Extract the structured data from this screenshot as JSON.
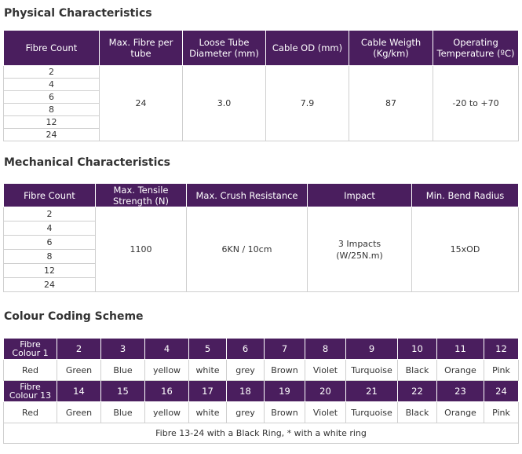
{
  "physical": {
    "title": "Physical Characteristics",
    "headers": [
      "Fibre Count",
      "Max. Fibre per tube",
      "Loose Tube Diameter (mm)",
      "Cable OD (mm)",
      "Cable Weigth (Kg/km)",
      "Operating Temperature (ºC)"
    ],
    "fibre_counts": [
      "2",
      "4",
      "6",
      "8",
      "12",
      "24"
    ],
    "values": [
      "24",
      "3.0",
      "7.9",
      "87",
      "-20 to +70"
    ]
  },
  "mechanical": {
    "title": "Mechanical Characteristics",
    "headers": [
      "Fibre Count",
      "Max. Tensile Strength (N)",
      "Max. Crush Resistance",
      "Impact",
      "Min. Bend Radius"
    ],
    "fibre_counts": [
      "2",
      "4",
      "6",
      "8",
      "12",
      "24"
    ],
    "values": [
      "1100",
      "6KN / 10cm",
      "3 Impacts (W/25N.m)",
      "15xOD"
    ]
  },
  "colour": {
    "title": "Colour Coding Scheme",
    "row1_label": "Fibre Colour 1",
    "row1_numbers": [
      "2",
      "3",
      "4",
      "5",
      "6",
      "7",
      "8",
      "9",
      "10",
      "11",
      "12"
    ],
    "colours": [
      "Red",
      "Green",
      "Blue",
      "yellow",
      "white",
      "grey",
      "Brown",
      "Violet",
      "Turquoise",
      "Black",
      "Orange",
      "Pink"
    ],
    "row2_label": "Fibre Colour 13",
    "row2_numbers": [
      "14",
      "15",
      "16",
      "17",
      "18",
      "19",
      "20",
      "21",
      "22",
      "23",
      "24"
    ],
    "note": "Fibre 13-24 with a Black Ring, * with a white ring"
  }
}
